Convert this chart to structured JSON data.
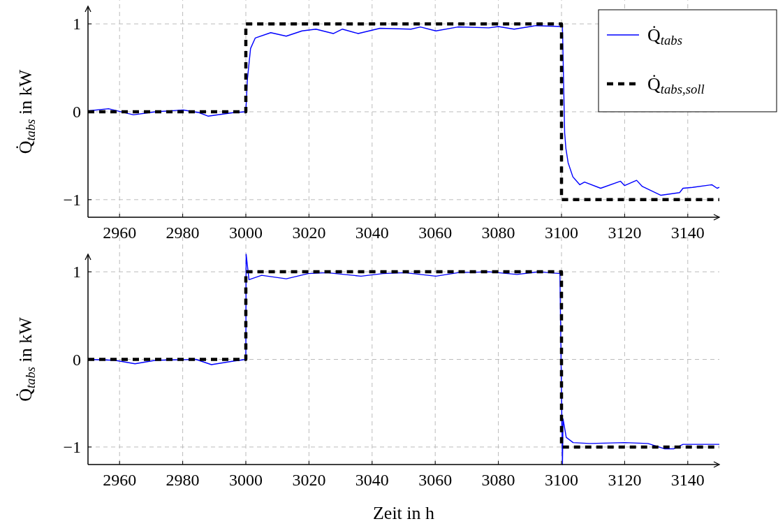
{
  "chart_data": [
    {
      "type": "line",
      "ylabel": "Q̇$_{tabs}$ in kW",
      "xlim": [
        2950,
        3150
      ],
      "xticks": [
        2960,
        2980,
        3000,
        3020,
        3040,
        3060,
        3080,
        3100,
        3120,
        3140
      ],
      "ylim": [
        -1.2,
        1.2
      ],
      "yticks": [
        -1,
        0,
        1
      ],
      "grid": true,
      "legend": "top right",
      "series": [
        {
          "name": "Q̇$_{tabs}$",
          "color": "#0000ff",
          "line_style": "solid",
          "x": [
            2950,
            2956.5,
            2964.4,
            2971.4,
            2980.2,
            2985.2,
            2988.1,
            2996,
            3000,
            3000.5,
            3001.5,
            3003,
            3007.9,
            3012.8,
            3017.8,
            3022.2,
            3027.7,
            3030.6,
            3035.6,
            3042.5,
            3052.3,
            3055.3,
            3060.2,
            3067.2,
            3077,
            3080,
            3085,
            3091.9,
            3100.3,
            3101,
            3101.4,
            3102.1,
            3103.6,
            3105.8,
            3107.3,
            3112.4,
            3118.7,
            3120,
            3123.8,
            3125.6,
            3131.5,
            3137.4,
            3138.5,
            3141.5,
            3147.6,
            3149.3,
            3150
          ],
          "values": [
            0.01,
            0.035,
            -0.035,
            0,
            0.02,
            -0.01,
            -0.05,
            -0.01,
            0,
            0.37,
            0.72,
            0.84,
            0.9,
            0.86,
            0.92,
            0.94,
            0.89,
            0.94,
            0.89,
            0.95,
            0.94,
            0.965,
            0.92,
            0.965,
            0.955,
            0.97,
            0.94,
            0.98,
            0.97,
            -0.24,
            -0.42,
            -0.58,
            -0.74,
            -0.83,
            -0.8,
            -0.87,
            -0.79,
            -0.84,
            -0.78,
            -0.85,
            -0.95,
            -0.92,
            -0.87,
            -0.86,
            -0.83,
            -0.87,
            -0.86
          ]
        },
        {
          "name": "Q̇$_{tabs,soll}$",
          "color": "#000000",
          "line_style": "dashed",
          "x": [
            2950,
            3000,
            3000,
            3100,
            3100,
            3150
          ],
          "values": [
            0,
            0,
            1,
            1,
            -1,
            -1
          ]
        }
      ]
    },
    {
      "type": "line",
      "ylabel": "Q̇$_{tabs}$ in kW",
      "xlabel": "Zeit in h",
      "xlim": [
        2950,
        3150
      ],
      "xticks": [
        2960,
        2980,
        3000,
        3020,
        3040,
        3060,
        3080,
        3100,
        3120,
        3140
      ],
      "ylim": [
        -1.2,
        1.2
      ],
      "yticks": [
        -1,
        0,
        1
      ],
      "grid": true,
      "series": [
        {
          "color": "#0000ff",
          "line_style": "solid",
          "x": [
            2950,
            2958.5,
            2964.9,
            2971.4,
            2984.2,
            2989.1,
            2996,
            3000,
            3000.1,
            3001,
            3005,
            3012.8,
            3019.8,
            3025.7,
            3036.5,
            3043.5,
            3050.4,
            3060.2,
            3067.2,
            3077,
            3085.9,
            3092.8,
            3099.5,
            3100.3,
            3100.5,
            3101.5,
            3103.7,
            3108.9,
            3120,
            3127.4,
            3132.6,
            3135.6,
            3138.5,
            3150
          ],
          "values": [
            0,
            -0.01,
            -0.05,
            -0.01,
            0,
            -0.06,
            -0.02,
            0,
            1.2,
            0.91,
            0.96,
            0.92,
            0.98,
            0.99,
            0.95,
            0.98,
            0.99,
            0.95,
            0.99,
            1,
            0.97,
            1,
            0.98,
            -1.2,
            -0.68,
            -0.89,
            -0.95,
            -0.96,
            -0.95,
            -0.96,
            -1.02,
            -1.02,
            -0.97,
            -0.97
          ]
        },
        {
          "color": "#000000",
          "line_style": "dashed",
          "x": [
            2950,
            3000,
            3000,
            3100,
            3100,
            3150
          ],
          "values": [
            0,
            0,
            1,
            1,
            -1,
            -1
          ]
        }
      ]
    }
  ]
}
